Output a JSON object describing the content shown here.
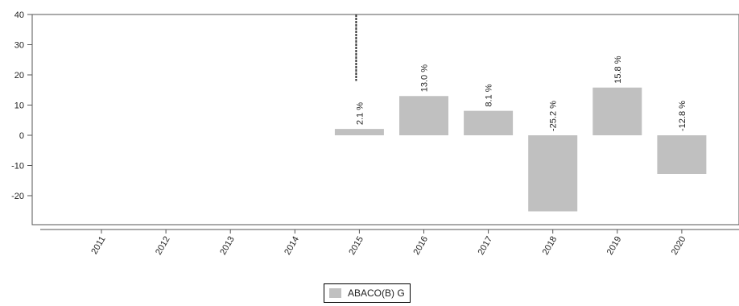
{
  "chart_data": {
    "type": "bar",
    "categories": [
      "2011",
      "2012",
      "2013",
      "2014",
      "2015",
      "2016",
      "2017",
      "2018",
      "2019",
      "2020"
    ],
    "series": [
      {
        "name": "ABACO(B) G",
        "values": [
          null,
          null,
          null,
          null,
          2.1,
          13.0,
          8.1,
          -25.2,
          15.8,
          -12.8
        ],
        "labels": [
          "",
          "",
          "",
          "",
          "2.1 %",
          "13.0 %",
          "8.1 %",
          "-25.2 %",
          "15.8 %",
          "-12.8 %"
        ],
        "color": "#c0c0c0"
      }
    ],
    "y_ticks": [
      "40",
      "30",
      "20",
      "10",
      "0",
      "-10",
      "-20"
    ],
    "ylim": [
      -30,
      40
    ],
    "grid": false,
    "legend_position": "bottom-center",
    "marker": {
      "category": "2015",
      "style": "dashed-vertical-line"
    }
  },
  "legend": {
    "label": "ABACO(B) G",
    "color": "#c0c0c0"
  }
}
